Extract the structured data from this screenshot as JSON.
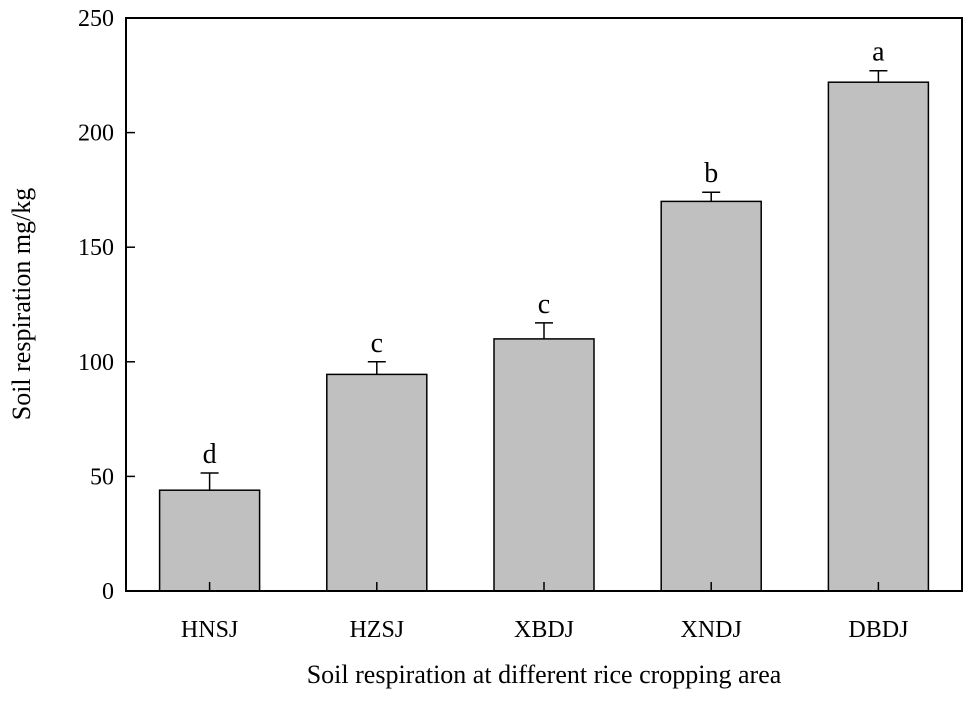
{
  "chart_data": {
    "type": "bar",
    "categories": [
      "HNSJ",
      "HZSJ",
      "XBDJ",
      "XNDJ",
      "DBDJ"
    ],
    "values": [
      44,
      94.5,
      110,
      170,
      222
    ],
    "error_upper": [
      7.5,
      5.5,
      7,
      4,
      5
    ],
    "significance_letters": [
      "d",
      "c",
      "c",
      "b",
      "a"
    ],
    "xlabel": "Soil respiration at different rice cropping area",
    "ylabel": "Soil respiration mg/kg",
    "ylim": [
      0,
      250
    ],
    "yticks": [
      0,
      50,
      100,
      150,
      200,
      250
    ],
    "grid": false,
    "legend": "none",
    "bar_color": "#c0c0c0",
    "edge_color": "#000000"
  }
}
